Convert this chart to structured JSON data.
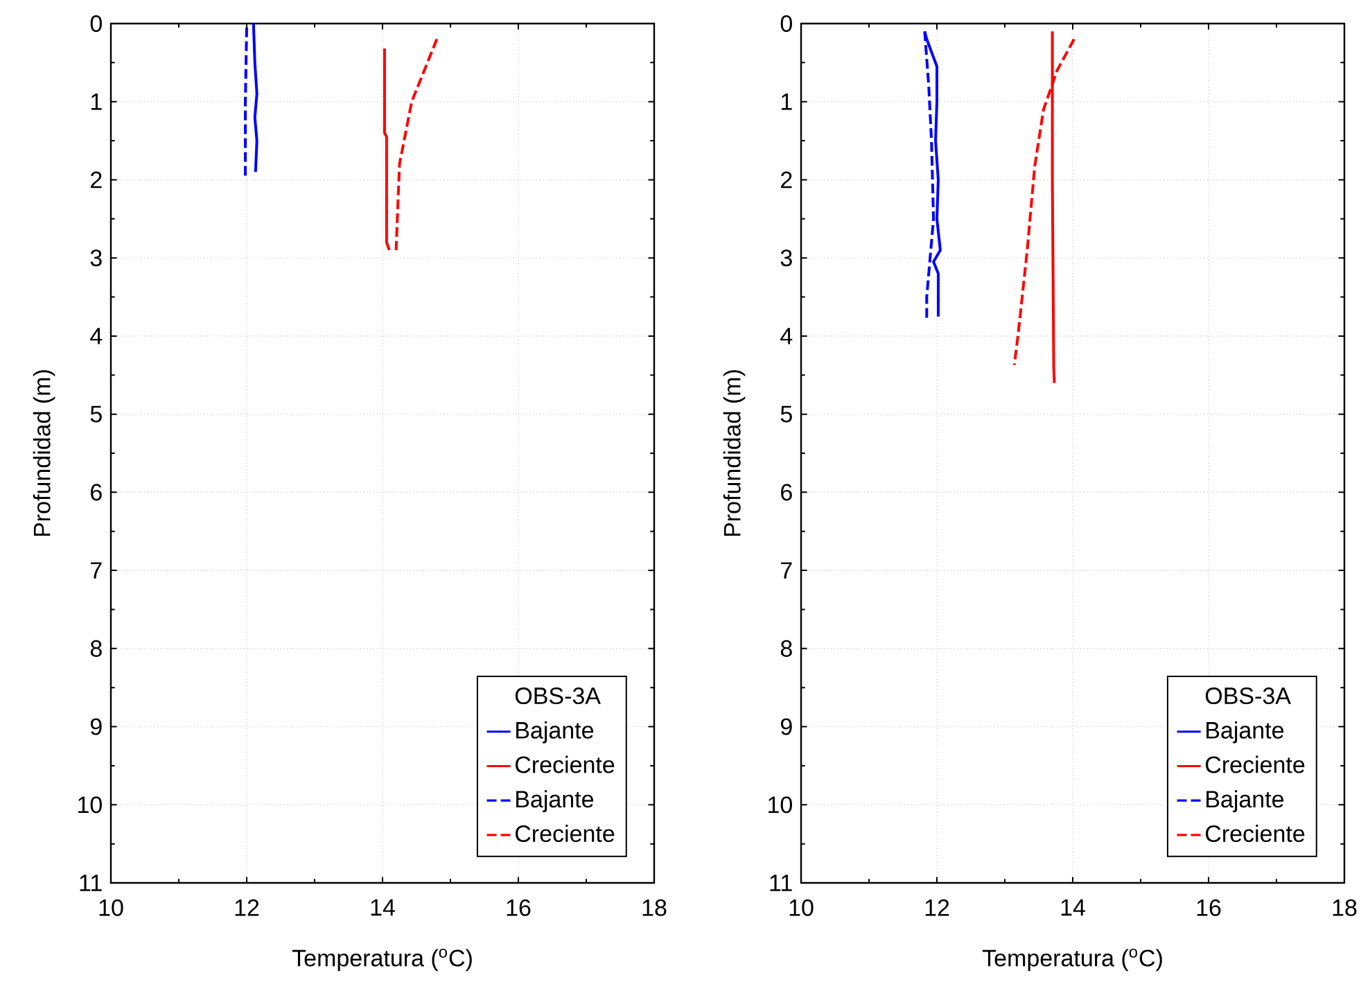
{
  "chart_data": [
    {
      "type": "line",
      "xlabel": "Temperatura ($^{o}$C)",
      "ylabel": "Profundidad (m)",
      "legend_title": "OBS-3A",
      "xlim": [
        10,
        18
      ],
      "ylim": [
        11,
        0
      ],
      "xticks": [
        10,
        12,
        14,
        16,
        18
      ],
      "yticks": [
        0,
        1,
        2,
        3,
        4,
        5,
        6,
        7,
        8,
        9,
        10,
        11
      ],
      "grid": true,
      "legend": "bottom right",
      "series": [
        {
          "name": "Bajante",
          "color": "#0000ff",
          "line_style": "solid",
          "x": [
            12.1,
            12.12,
            12.15,
            12.12,
            12.15,
            12.13
          ],
          "values": [
            0,
            0.5,
            0.9,
            1.2,
            1.5,
            1.9
          ]
        },
        {
          "name": "Creciente",
          "color": "#ff0000",
          "line_style": "solid",
          "x": [
            14.03,
            14.03,
            14.06,
            14.06,
            14.1
          ],
          "values": [
            0.32,
            1.4,
            1.45,
            2.8,
            2.9
          ]
        },
        {
          "name": "Bajante",
          "color": "#0000ff",
          "line_style": "dashed",
          "x": [
            12.0,
            11.98,
            11.98
          ],
          "values": [
            0.05,
            1.0,
            2.0
          ]
        },
        {
          "name": "Creciente",
          "color": "#ff0000",
          "line_style": "dashed",
          "x": [
            14.8,
            14.43,
            14.25,
            14.2
          ],
          "values": [
            0.2,
            1.0,
            1.8,
            2.9
          ]
        }
      ]
    },
    {
      "type": "line",
      "xlabel": "Temperatura ($^{o}$C)",
      "ylabel": "Profundidad (m)",
      "legend_title": "OBS-3A",
      "xlim": [
        10,
        18
      ],
      "ylim": [
        11,
        0
      ],
      "xticks": [
        10,
        12,
        14,
        16,
        18
      ],
      "yticks": [
        0,
        1,
        2,
        3,
        4,
        5,
        6,
        7,
        8,
        9,
        10,
        11
      ],
      "grid": true,
      "legend": "bottom right",
      "series": [
        {
          "name": "Bajante",
          "color": "#0000ff",
          "line_style": "solid",
          "x": [
            11.82,
            11.85,
            12.0,
            12.0,
            11.98,
            12.02,
            12.0,
            12.05,
            11.95,
            12.02,
            12.02
          ],
          "values": [
            0.1,
            0.2,
            0.55,
            1.0,
            1.5,
            2.0,
            2.5,
            2.9,
            3.05,
            3.2,
            3.75
          ]
        },
        {
          "name": "Creciente",
          "color": "#ff0000",
          "line_style": "solid",
          "x": [
            13.7,
            13.7,
            13.72,
            13.73
          ],
          "values": [
            0.1,
            2.0,
            4.4,
            4.6
          ]
        },
        {
          "name": "Bajante",
          "color": "#0000ff",
          "line_style": "dashed",
          "x": [
            11.82,
            11.88,
            11.92,
            11.95,
            11.9,
            11.85,
            11.85
          ],
          "values": [
            0.1,
            0.8,
            1.5,
            2.5,
            3.0,
            3.5,
            3.8
          ]
        },
        {
          "name": "Creciente",
          "color": "#ff0000",
          "line_style": "dashed",
          "x": [
            14.02,
            13.77,
            13.57,
            13.44,
            13.33,
            13.2,
            13.14
          ],
          "values": [
            0.2,
            0.6,
            1.1,
            1.83,
            2.9,
            3.95,
            4.37
          ]
        }
      ]
    }
  ]
}
